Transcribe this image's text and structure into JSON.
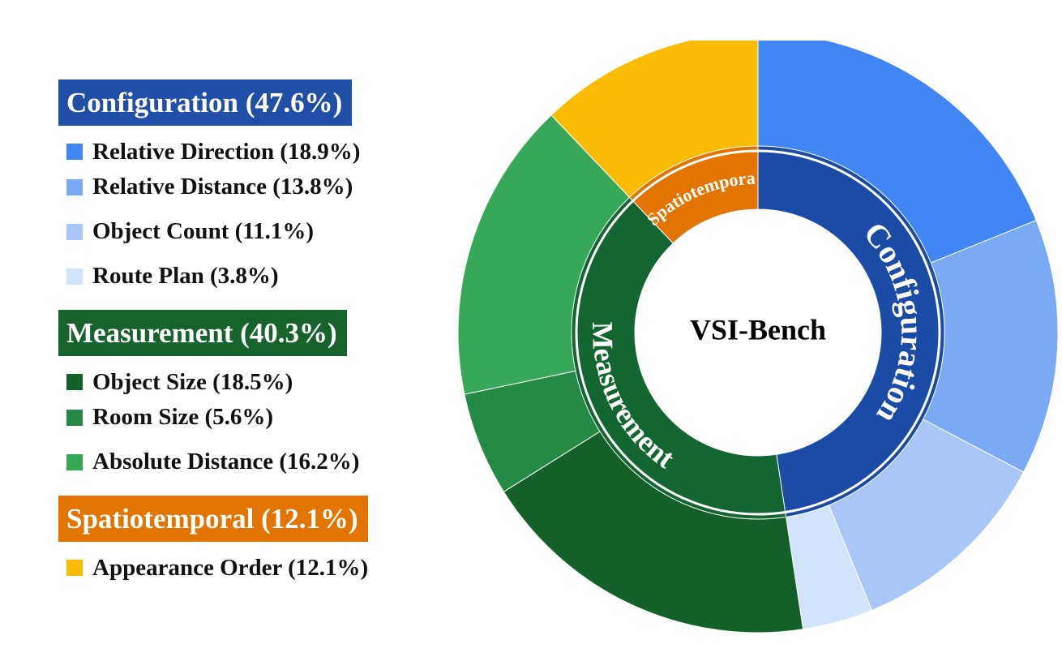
{
  "legend": {
    "categories": [
      {
        "label": "Configuration (47.6%)",
        "color": "#1f4fa6",
        "items": [
          {
            "label": "Relative Direction (18.9%)",
            "color": "#4285f4"
          },
          {
            "label": "Relative Distance (13.8%)",
            "color": "#7aaaf4"
          },
          {
            "label": "Object Count (11.1%)",
            "color": "#a8c7f8"
          },
          {
            "label": "Route Plan (3.8%)",
            "color": "#d2e3fc"
          }
        ]
      },
      {
        "label": "Measurement (40.3%)",
        "color": "#16632e",
        "items": [
          {
            "label": "Object Size (18.5%)",
            "color": "#13602b"
          },
          {
            "label": "Room Size (5.6%)",
            "color": "#258a45"
          },
          {
            "label": "Absolute Distance (16.2%)",
            "color": "#36a857"
          }
        ]
      },
      {
        "label": "Spatiotemporal (12.1%)",
        "color": "#e37400",
        "items": [
          {
            "label": "Appearance Order (12.1%)",
            "color": "#fbbc04"
          }
        ]
      }
    ]
  },
  "chart_data": {
    "type": "pie",
    "center_label": "VSI-Bench",
    "inner_ring": [
      {
        "label": "Configuration",
        "value": 47.6,
        "color": "#1a4ca6"
      },
      {
        "label": "Measurement",
        "value": 40.3,
        "color": "#136531"
      },
      {
        "label": "Spatiotemporal",
        "value": 12.1,
        "color": "#e37400"
      }
    ],
    "outer_ring": [
      {
        "label": "Relative Direction",
        "value": 18.9,
        "color": "#4285f4"
      },
      {
        "label": "Relative Distance",
        "value": 13.8,
        "color": "#7aaaf4"
      },
      {
        "label": "Object Count",
        "value": 11.1,
        "color": "#a8c7f8"
      },
      {
        "label": "Route Plan",
        "value": 3.8,
        "color": "#d2e3fc"
      },
      {
        "label": "Object Size",
        "value": 18.5,
        "color": "#13602b"
      },
      {
        "label": "Room Size",
        "value": 5.6,
        "color": "#258a45"
      },
      {
        "label": "Absolute Distance",
        "value": 16.2,
        "color": "#36a857"
      },
      {
        "label": "Appearance Order",
        "value": 12.1,
        "color": "#fbbc04"
      }
    ]
  }
}
